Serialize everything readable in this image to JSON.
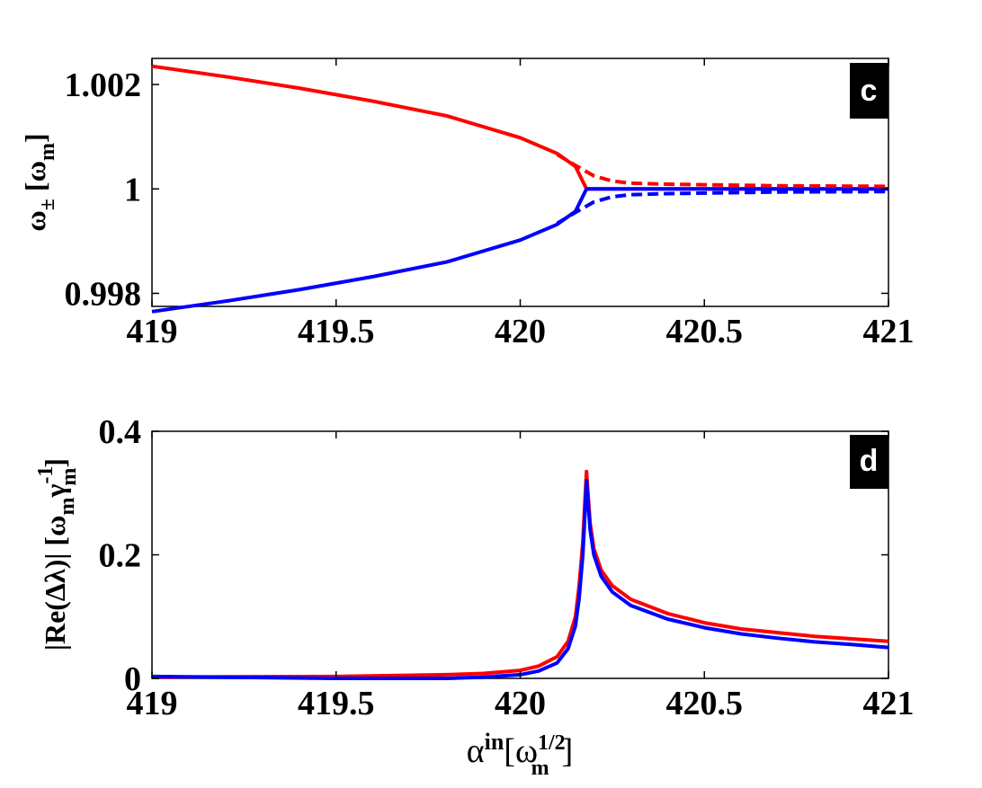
{
  "chart_data": [
    {
      "type": "line",
      "panel_label": "c",
      "ylabel_parts": {
        "base": "ω",
        "sub": "±",
        "bracket_base": "ω",
        "bracket_sub": "m"
      },
      "xlim": [
        419,
        421
      ],
      "ylim": [
        0.99775,
        1.0025
      ],
      "xticks": [
        419,
        419.5,
        420,
        420.5,
        421
      ],
      "xtick_labels": [
        "419",
        "419.5",
        "420",
        "420.5",
        "421"
      ],
      "yticks": [
        0.998,
        1,
        1.002
      ],
      "ytick_labels": [
        "0.998",
        "1",
        "1.002"
      ],
      "series": [
        {
          "style": "solid",
          "color": "#ff0000",
          "x": [
            419,
            419.2,
            419.4,
            419.6,
            419.8,
            420.0,
            420.1,
            420.15,
            420.18,
            420.2,
            420.4,
            420.6,
            420.8,
            421
          ],
          "y": [
            1.00235,
            1.00215,
            1.00193,
            1.00168,
            1.0014,
            1.00098,
            1.00068,
            1.00043,
            1.0,
            1.0,
            1.0,
            1.0,
            1.0,
            1.0
          ]
        },
        {
          "style": "solid",
          "color": "#0000ff",
          "x": [
            419,
            419.2,
            419.4,
            419.6,
            419.8,
            420.0,
            420.1,
            420.15,
            420.18,
            420.2,
            420.4,
            420.6,
            420.8,
            421
          ],
          "y": [
            0.99765,
            0.99785,
            0.99807,
            0.99832,
            0.9986,
            0.99902,
            0.99932,
            0.99957,
            1.0,
            1.0,
            1.0,
            1.0,
            1.0,
            1.0
          ]
        },
        {
          "style": "dashed",
          "color": "#ff0000",
          "x": [
            420.1,
            420.15,
            420.2,
            420.25,
            420.3,
            420.4,
            420.5,
            420.7,
            421
          ],
          "y": [
            1.00066,
            1.00045,
            1.00025,
            1.00015,
            1.00011,
            1.00009,
            1.00008,
            1.00006,
            1.00005
          ]
        },
        {
          "style": "dashed",
          "color": "#0000ff",
          "x": [
            420.1,
            420.15,
            420.2,
            420.25,
            420.3,
            420.4,
            420.5,
            420.7,
            421
          ],
          "y": [
            0.99934,
            0.99955,
            0.99975,
            0.99985,
            0.99989,
            0.99991,
            0.99992,
            0.99994,
            0.99995
          ]
        }
      ]
    },
    {
      "type": "line",
      "panel_label": "d",
      "ylabel_parts": {
        "main": "|Re(Δλ)| [ω",
        "sub1": "m",
        "gamma": "γ",
        "sup": "-1",
        "sub2": "m",
        "close": "]"
      },
      "xlabel_parts": {
        "base": "α",
        "sup": "in",
        "bracket": "[ω",
        "sub": "m",
        "sup2": "1/2",
        "close": "]"
      },
      "xlim": [
        419,
        421
      ],
      "ylim": [
        0,
        0.4
      ],
      "xticks": [
        419,
        419.5,
        420,
        420.5,
        421
      ],
      "xtick_labels": [
        "419",
        "419.5",
        "420",
        "420.5",
        "421"
      ],
      "yticks": [
        0,
        0.2,
        0.4
      ],
      "ytick_labels": [
        "0",
        "0.2",
        "0.4"
      ],
      "series": [
        {
          "color": "#ff0000",
          "x": [
            419,
            419.5,
            419.8,
            419.9,
            420.0,
            420.05,
            420.1,
            420.13,
            420.15,
            420.16,
            420.17,
            420.175,
            420.18,
            420.185,
            420.19,
            420.2,
            420.22,
            420.25,
            420.3,
            420.4,
            420.5,
            420.6,
            420.7,
            420.8,
            420.9,
            421
          ],
          "y": [
            0.002,
            0.003,
            0.006,
            0.008,
            0.013,
            0.02,
            0.035,
            0.06,
            0.1,
            0.15,
            0.22,
            0.28,
            0.335,
            0.29,
            0.25,
            0.21,
            0.175,
            0.15,
            0.128,
            0.105,
            0.09,
            0.08,
            0.074,
            0.068,
            0.064,
            0.06
          ]
        },
        {
          "color": "#0000ff",
          "x": [
            419,
            419.5,
            419.8,
            419.9,
            420.0,
            420.05,
            420.1,
            420.13,
            420.15,
            420.16,
            420.17,
            420.175,
            420.18,
            420.185,
            420.19,
            420.2,
            420.22,
            420.25,
            420.3,
            420.4,
            420.5,
            420.6,
            420.7,
            420.8,
            420.9,
            421
          ],
          "y": [
            0.003,
            0.0,
            0.0,
            0.002,
            0.006,
            0.012,
            0.025,
            0.048,
            0.085,
            0.13,
            0.2,
            0.26,
            0.32,
            0.278,
            0.24,
            0.2,
            0.165,
            0.14,
            0.118,
            0.096,
            0.082,
            0.072,
            0.065,
            0.059,
            0.055,
            0.05
          ]
        }
      ]
    }
  ]
}
